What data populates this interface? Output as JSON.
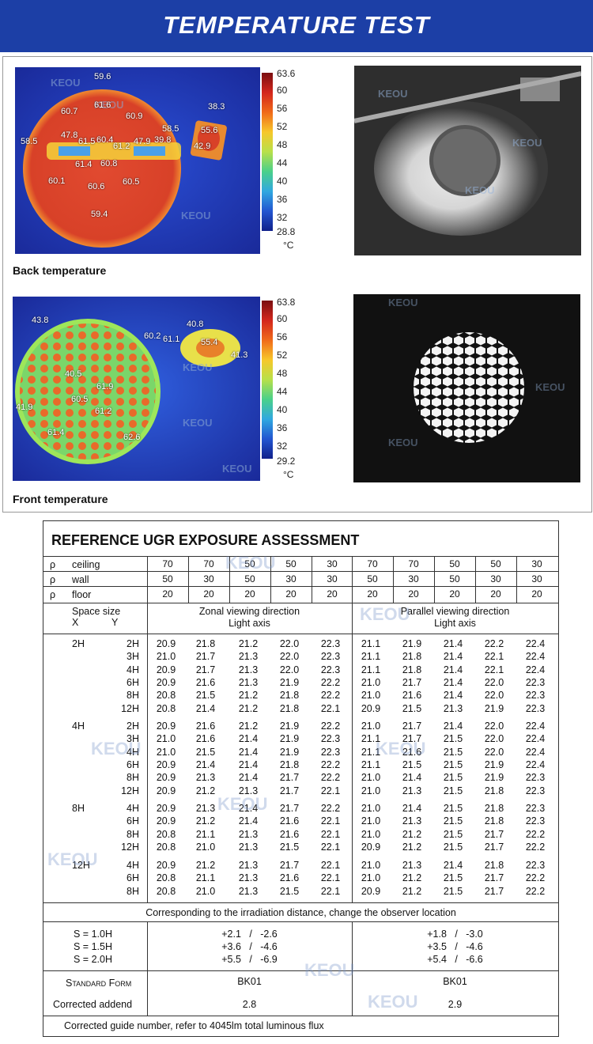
{
  "header": {
    "title": "TEMPERATURE TEST"
  },
  "watermark": "KEOU",
  "back": {
    "caption": "Back temperature",
    "scale_ticks": [
      "63.6",
      "60",
      "56",
      "52",
      "48",
      "44",
      "40",
      "36",
      "32",
      "28.8"
    ],
    "unit": "°C",
    "points": [
      "59.6",
      "61.6",
      "60.7",
      "60.9",
      "38.3",
      "58.5",
      "55.6",
      "47.8",
      "61.5",
      "60.4",
      "61.2",
      "47.9",
      "39.8",
      "58.5",
      "42.9",
      "61.4",
      "60.8",
      "60.1",
      "60.6",
      "60.5",
      "59.4"
    ]
  },
  "front": {
    "caption": "Front temperature",
    "scale_ticks": [
      "63.8",
      "60",
      "56",
      "52",
      "48",
      "44",
      "40",
      "36",
      "32",
      "29.2"
    ],
    "unit": "°C",
    "points": [
      "43.8",
      "40.8",
      "60.2",
      "61.1",
      "55.4",
      "41.3",
      "40.5",
      "61.9",
      "60.5",
      "41.9",
      "61.2",
      "61.4",
      "62.6"
    ]
  },
  "ugr": {
    "title": "REFERENCE UGR EXPOSURE ASSESSMENT",
    "rho": "ρ",
    "rho_rows": [
      {
        "label": "ceiling",
        "values": [
          "70",
          "70",
          "50",
          "50",
          "30",
          "70",
          "70",
          "50",
          "50",
          "30"
        ]
      },
      {
        "label": "wall",
        "values": [
          "50",
          "30",
          "50",
          "30",
          "30",
          "50",
          "30",
          "50",
          "30",
          "30"
        ]
      },
      {
        "label": "floor",
        "values": [
          "20",
          "20",
          "20",
          "20",
          "20",
          "20",
          "20",
          "20",
          "20",
          "20"
        ]
      }
    ],
    "space_size": "Space size",
    "x_label": "X",
    "y_label": "Y",
    "zonal": "Zonal viewing direction",
    "parallel": "Parallel viewing direction",
    "light_axis": "Light axis",
    "groups": [
      {
        "x": "2H",
        "rows": [
          {
            "y": "2H",
            "z": [
              "20.9",
              "21.8",
              "21.2",
              "22.0",
              "22.3"
            ],
            "p": [
              "21.1",
              "21.9",
              "21.4",
              "22.2",
              "22.4"
            ]
          },
          {
            "y": "3H",
            "z": [
              "21.0",
              "21.7",
              "21.3",
              "22.0",
              "22.3"
            ],
            "p": [
              "21.1",
              "21.8",
              "21.4",
              "22.1",
              "22.4"
            ]
          },
          {
            "y": "4H",
            "z": [
              "20.9",
              "21.7",
              "21.3",
              "22.0",
              "22.3"
            ],
            "p": [
              "21.1",
              "21.8",
              "21.4",
              "22.1",
              "22.4"
            ]
          },
          {
            "y": "6H",
            "z": [
              "20.9",
              "21.6",
              "21.3",
              "21.9",
              "22.2"
            ],
            "p": [
              "21.0",
              "21.7",
              "21.4",
              "22.0",
              "22.3"
            ]
          },
          {
            "y": "8H",
            "z": [
              "20.8",
              "21.5",
              "21.2",
              "21.8",
              "22.2"
            ],
            "p": [
              "21.0",
              "21.6",
              "21.4",
              "22.0",
              "22.3"
            ]
          },
          {
            "y": "12H",
            "z": [
              "20.8",
              "21.4",
              "21.2",
              "21.8",
              "22.1"
            ],
            "p": [
              "20.9",
              "21.5",
              "21.3",
              "21.9",
              "22.3"
            ]
          }
        ]
      },
      {
        "x": "4H",
        "rows": [
          {
            "y": "2H",
            "z": [
              "20.9",
              "21.6",
              "21.2",
              "21.9",
              "22.2"
            ],
            "p": [
              "21.0",
              "21.7",
              "21.4",
              "22.0",
              "22.4"
            ]
          },
          {
            "y": "3H",
            "z": [
              "21.0",
              "21.6",
              "21.4",
              "21.9",
              "22.3"
            ],
            "p": [
              "21.1",
              "21.7",
              "21.5",
              "22.0",
              "22.4"
            ]
          },
          {
            "y": "4H",
            "z": [
              "21.0",
              "21.5",
              "21.4",
              "21.9",
              "22.3"
            ],
            "p": [
              "21.1",
              "21.6",
              "21.5",
              "22.0",
              "22.4"
            ]
          },
          {
            "y": "6H",
            "z": [
              "20.9",
              "21.4",
              "21.4",
              "21.8",
              "22.2"
            ],
            "p": [
              "21.1",
              "21.5",
              "21.5",
              "21.9",
              "22.4"
            ]
          },
          {
            "y": "8H",
            "z": [
              "20.9",
              "21.3",
              "21.4",
              "21.7",
              "22.2"
            ],
            "p": [
              "21.0",
              "21.4",
              "21.5",
              "21.9",
              "22.3"
            ]
          },
          {
            "y": "12H",
            "z": [
              "20.9",
              "21.2",
              "21.3",
              "21.7",
              "22.1"
            ],
            "p": [
              "21.0",
              "21.3",
              "21.5",
              "21.8",
              "22.3"
            ]
          }
        ]
      },
      {
        "x": "8H",
        "rows": [
          {
            "y": "4H",
            "z": [
              "20.9",
              "21.3",
              "21.4",
              "21.7",
              "22.2"
            ],
            "p": [
              "21.0",
              "21.4",
              "21.5",
              "21.8",
              "22.3"
            ]
          },
          {
            "y": "6H",
            "z": [
              "20.9",
              "21.2",
              "21.4",
              "21.6",
              "22.1"
            ],
            "p": [
              "21.0",
              "21.3",
              "21.5",
              "21.8",
              "22.3"
            ]
          },
          {
            "y": "8H",
            "z": [
              "20.8",
              "21.1",
              "21.3",
              "21.6",
              "22.1"
            ],
            "p": [
              "21.0",
              "21.2",
              "21.5",
              "21.7",
              "22.2"
            ]
          },
          {
            "y": "12H",
            "z": [
              "20.8",
              "21.0",
              "21.3",
              "21.5",
              "22.1"
            ],
            "p": [
              "20.9",
              "21.2",
              "21.5",
              "21.7",
              "22.2"
            ]
          }
        ]
      },
      {
        "x": "12H",
        "rows": [
          {
            "y": "4H",
            "z": [
              "20.9",
              "21.2",
              "21.3",
              "21.7",
              "22.1"
            ],
            "p": [
              "21.0",
              "21.3",
              "21.4",
              "21.8",
              "22.3"
            ]
          },
          {
            "y": "6H",
            "z": [
              "20.8",
              "21.1",
              "21.3",
              "21.6",
              "22.1"
            ],
            "p": [
              "21.0",
              "21.2",
              "21.5",
              "21.7",
              "22.2"
            ]
          },
          {
            "y": "8H",
            "z": [
              "20.8",
              "21.0",
              "21.3",
              "21.5",
              "22.1"
            ],
            "p": [
              "20.9",
              "21.2",
              "21.5",
              "21.7",
              "22.2"
            ]
          }
        ]
      }
    ],
    "distance_note": "Corresponding to the irradiation distance, change the observer location",
    "s_rows": [
      {
        "label": "S = 1.0H",
        "z": "+2.1   /   -2.6",
        "p": "+1.8   /   -3.0"
      },
      {
        "label": "S = 1.5H",
        "z": "+3.6   /   -4.6",
        "p": "+3.5   /   -4.6"
      },
      {
        "label": "S = 2.0H",
        "z": "+5.5   /   -6.9",
        "p": "+5.4   /   -6.6"
      }
    ],
    "standard_form": "Standard Form",
    "std_z": "BK01",
    "std_p": "BK01",
    "corrected_addend": "Corrected addend",
    "add_z": "2.8",
    "add_p": "2.9",
    "footnote": "Corrected guide number, refer to 4045lm total luminous flux"
  }
}
